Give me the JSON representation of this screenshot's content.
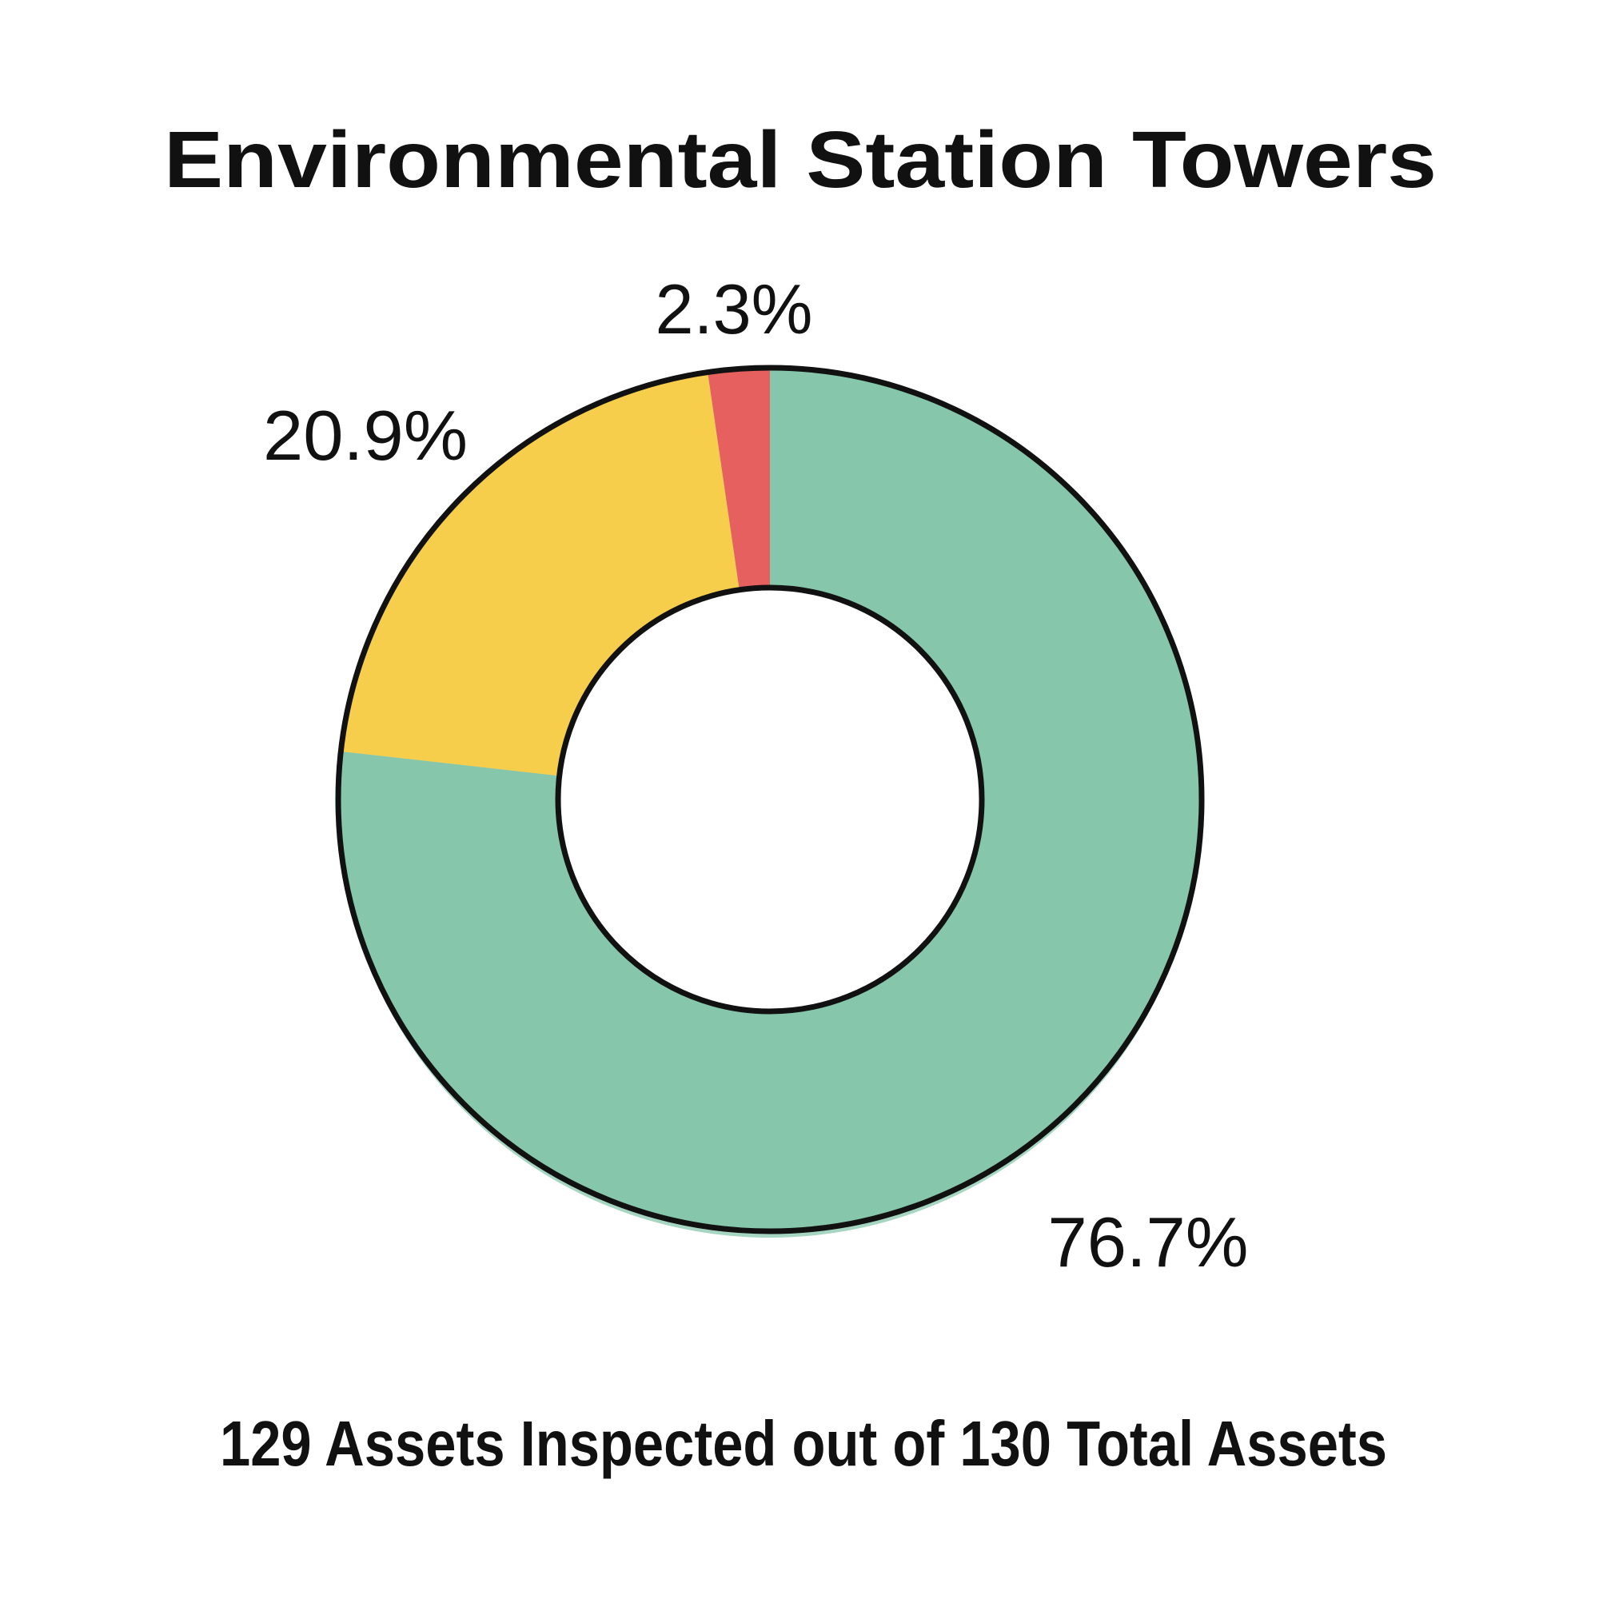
{
  "page": {
    "background": "#FFFFFF"
  },
  "title": "Environmental Station Towers",
  "subtitle": "129 Assets Inspected out of 130 Total Assets",
  "chart_data": {
    "type": "pie",
    "variant": "donut",
    "title": "Environmental Station Towers",
    "subtitle": "129 Assets Inspected out of 130 Total Assets",
    "direction": "clockwise",
    "start_angle_deg": 0,
    "legend_position": "none",
    "assets_inspected": 129,
    "total_assets": 130,
    "slices": [
      {
        "label": "76.7%",
        "value": 76.7,
        "color": "#86C6AA"
      },
      {
        "label": "20.9%",
        "value": 20.9,
        "color": "#F6CE4C"
      },
      {
        "label": "2.3%",
        "value": 2.3,
        "color": "#E5615E"
      }
    ],
    "outline_color": "#111111",
    "shadow_color": "#A6D6C2",
    "hole_color": "#FFFFFF",
    "label_color": "#111111"
  }
}
